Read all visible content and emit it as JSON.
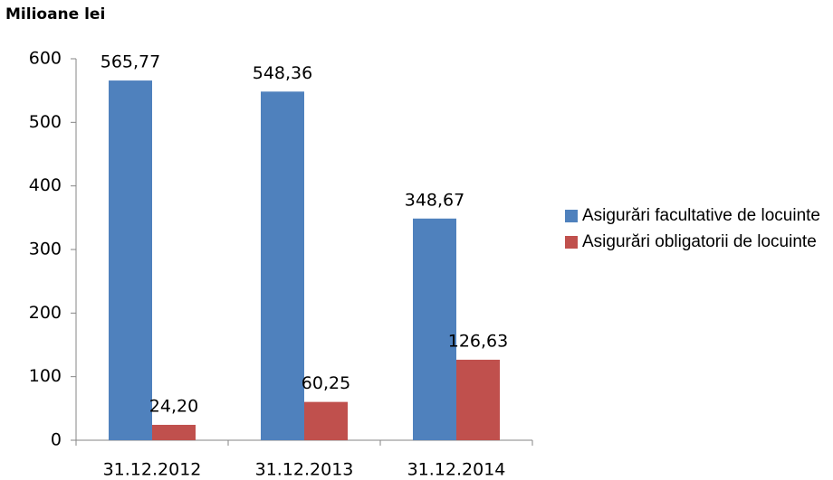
{
  "chart_data": {
    "type": "bar",
    "title": "Milioane lei",
    "categories": [
      "31.12.2012",
      "31.12.2013",
      "31.12.2014"
    ],
    "series": [
      {
        "name": "Asigurări facultative de locuinte",
        "color": "#4f81bd",
        "values": [
          565.77,
          548.36,
          348.67
        ],
        "value_labels": [
          "565,77",
          "548,36",
          "348,67"
        ]
      },
      {
        "name": "Asigurări obligatorii de locuinte",
        "color": "#c0504d",
        "values": [
          24.2,
          60.25,
          126.63
        ],
        "value_labels": [
          "24,20",
          "60,25",
          "126,63"
        ]
      }
    ],
    "ylim": [
      0,
      600
    ],
    "yticks": [
      0,
      100,
      200,
      300,
      400,
      500,
      600
    ],
    "grid": false,
    "legend": "right"
  }
}
